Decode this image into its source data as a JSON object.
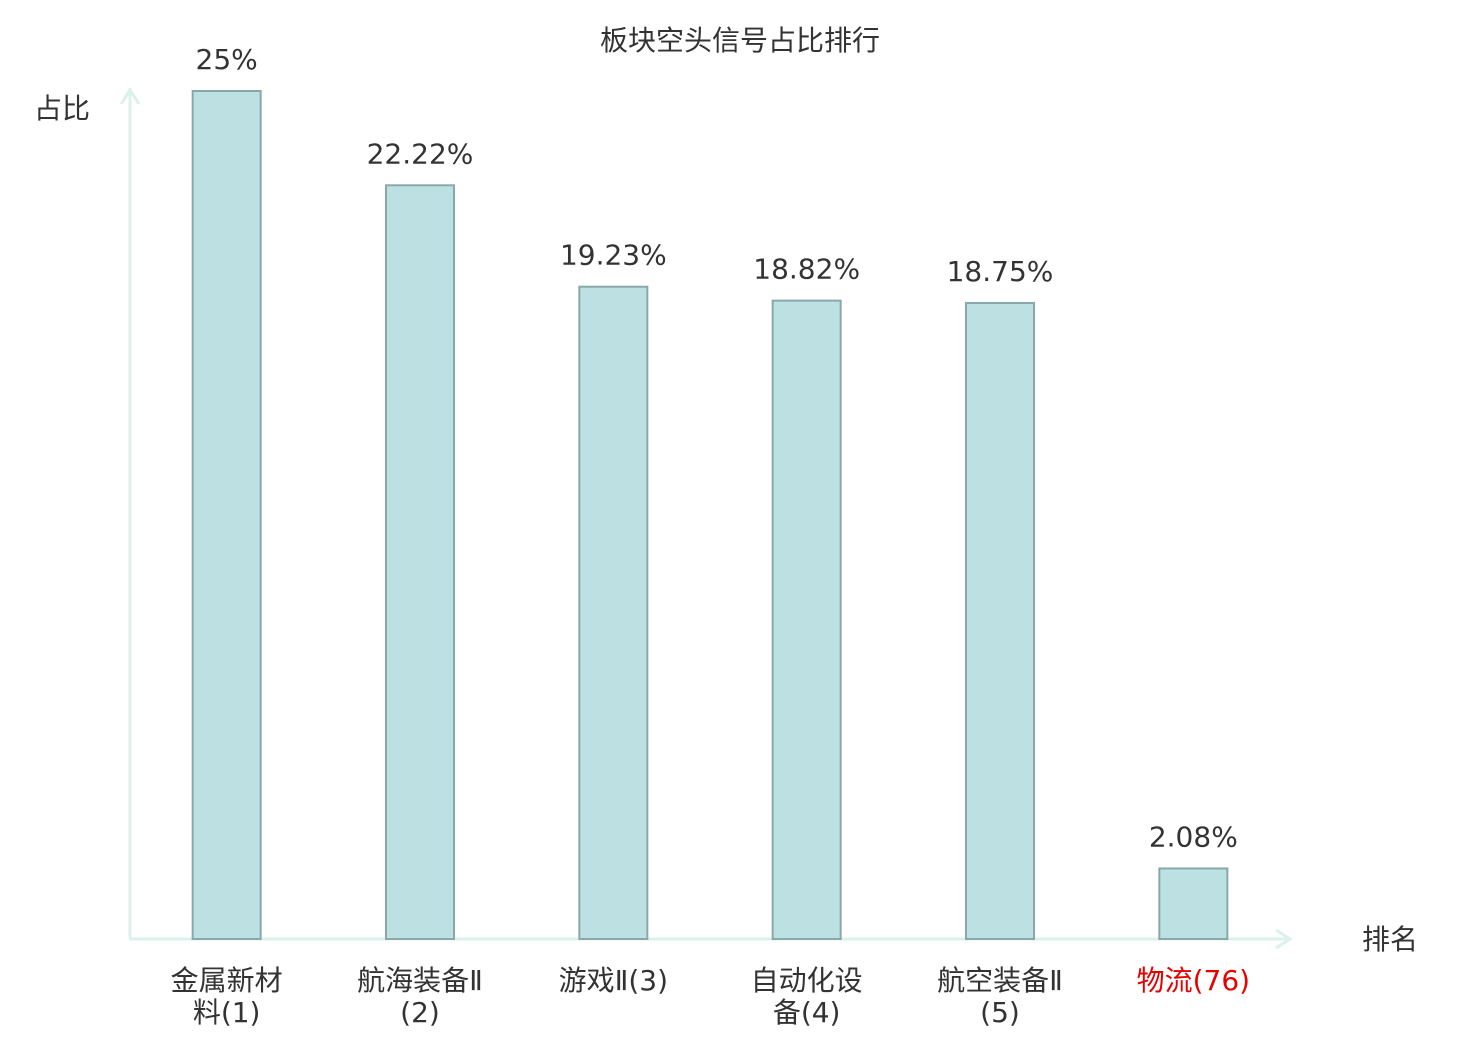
{
  "chart_data": {
    "type": "bar",
    "title": "板块空头信号占比排行",
    "y_label": "占比",
    "x_label": "排名",
    "categories": [
      "金属新材料(1)",
      "航海装备Ⅱ(2)",
      "游戏Ⅱ(3)",
      "自动化设备(4)",
      "航空装备Ⅱ(5)",
      "物流(76)"
    ],
    "category_label_colors": [
      "#333333",
      "#333333",
      "#333333",
      "#333333",
      "#333333",
      "#e60000"
    ],
    "values": [
      25,
      22.22,
      19.23,
      18.82,
      18.75,
      2.08
    ],
    "value_labels": [
      "25%",
      "22.22%",
      "19.23%",
      "18.82%",
      "18.75%",
      "2.08%"
    ],
    "color": "#bde0e2",
    "edge_color": "#8aa8aa",
    "axis_color": "#dcf0ec",
    "ylim": [
      0,
      25
    ]
  }
}
